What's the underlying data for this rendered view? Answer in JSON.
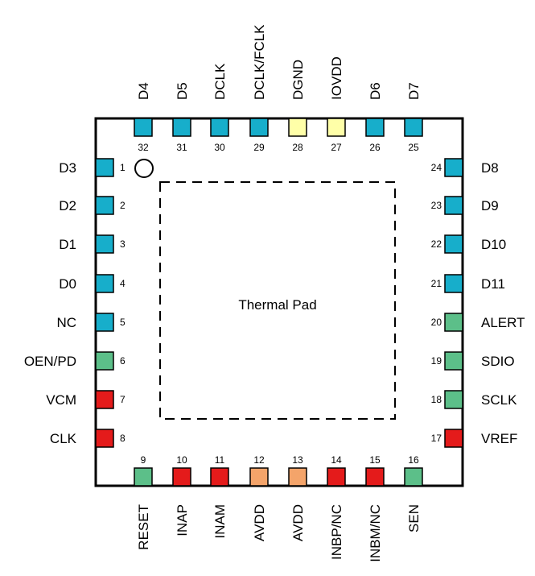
{
  "package": {
    "center_label": "Thermal Pad"
  },
  "colors": {
    "digital_output": "#17aecb",
    "digital_io": "#5cbf89",
    "analog": "#e41b1b",
    "supply_analog": "#f4a46a",
    "supply_digital": "#ffffa8"
  },
  "pins": {
    "left": [
      {
        "num": "1",
        "name": "D3",
        "type": "digital_output"
      },
      {
        "num": "2",
        "name": "D2",
        "type": "digital_output"
      },
      {
        "num": "3",
        "name": "D1",
        "type": "digital_output"
      },
      {
        "num": "4",
        "name": "D0",
        "type": "digital_output"
      },
      {
        "num": "5",
        "name": "NC",
        "type": "digital_output"
      },
      {
        "num": "6",
        "name": "OEN/PD",
        "type": "digital_io"
      },
      {
        "num": "7",
        "name": "VCM",
        "type": "analog"
      },
      {
        "num": "8",
        "name": "CLK",
        "type": "analog"
      }
    ],
    "bottom": [
      {
        "num": "9",
        "name": "RESET",
        "type": "digital_io"
      },
      {
        "num": "10",
        "name": "INAP",
        "type": "analog"
      },
      {
        "num": "11",
        "name": "INAM",
        "type": "analog"
      },
      {
        "num": "12",
        "name": "AVDD",
        "type": "supply_analog"
      },
      {
        "num": "13",
        "name": "AVDD",
        "type": "supply_analog"
      },
      {
        "num": "14",
        "name": "INBP/NC",
        "type": "analog"
      },
      {
        "num": "15",
        "name": "INBM/NC",
        "type": "analog"
      },
      {
        "num": "16",
        "name": "SEN",
        "type": "digital_io"
      }
    ],
    "right": [
      {
        "num": "17",
        "name": "VREF",
        "type": "analog"
      },
      {
        "num": "18",
        "name": "SCLK",
        "type": "digital_io"
      },
      {
        "num": "19",
        "name": "SDIO",
        "type": "digital_io"
      },
      {
        "num": "20",
        "name": "ALERT",
        "type": "digital_io"
      },
      {
        "num": "21",
        "name": "D11",
        "type": "digital_output"
      },
      {
        "num": "22",
        "name": "D10",
        "type": "digital_output"
      },
      {
        "num": "23",
        "name": "D9",
        "type": "digital_output"
      },
      {
        "num": "24",
        "name": "D8",
        "type": "digital_output"
      }
    ],
    "top": [
      {
        "num": "25",
        "name": "D7",
        "type": "digital_output"
      },
      {
        "num": "26",
        "name": "D6",
        "type": "digital_output"
      },
      {
        "num": "27",
        "name": "IOVDD",
        "type": "supply_digital"
      },
      {
        "num": "28",
        "name": "DGND",
        "type": "supply_digital"
      },
      {
        "num": "29",
        "name": "DCLK/FCLK",
        "type": "digital_output"
      },
      {
        "num": "30",
        "name": "DCLK",
        "type": "digital_output"
      },
      {
        "num": "31",
        "name": "D5",
        "type": "digital_output"
      },
      {
        "num": "32",
        "name": "D4",
        "type": "digital_output"
      }
    ]
  }
}
